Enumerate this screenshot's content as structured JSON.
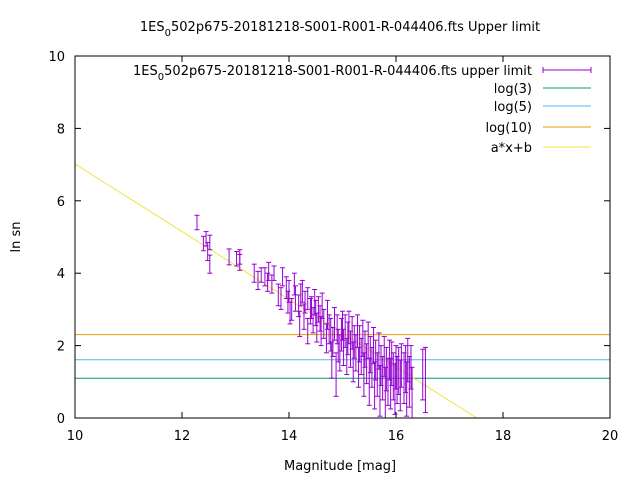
{
  "chart_data": {
    "type": "scatter",
    "title": "1ES 0502p675-20181218-S001-R001-R-044406.fts Upper limit",
    "title_parts": {
      "before": "1ES",
      "subscript": "0",
      "after": "502p675-20181218-S001-R001-R-044406.fts Upper limit"
    },
    "xlabel": "Magnitude [mag]",
    "ylabel": "ln sn",
    "xlim": [
      10,
      20
    ],
    "ylim": [
      0,
      10
    ],
    "xticks": [
      10,
      12,
      14,
      16,
      18,
      20
    ],
    "yticks": [
      0,
      2,
      4,
      6,
      8,
      10
    ],
    "grid": false,
    "legend_position": "top-right",
    "series": [
      {
        "name": "1ES 0502p675-20181218-S001-R001-R-044406.fts upper limit",
        "label_parts": {
          "before": "1ES",
          "subscript": "0",
          "after": "502p675-20181218-S001-R001-R-044406.fts upper limit"
        },
        "kind": "errorbars",
        "color": "#9400d3",
        "points": [
          [
            12.28,
            5.4,
            0.2
          ],
          [
            12.4,
            4.82,
            0.2
          ],
          [
            12.45,
            4.95,
            0.2
          ],
          [
            12.48,
            4.6,
            0.25
          ],
          [
            12.52,
            4.25,
            0.25
          ],
          [
            12.52,
            4.85,
            0.2
          ],
          [
            12.88,
            4.45,
            0.22
          ],
          [
            13.02,
            4.4,
            0.2
          ],
          [
            13.08,
            4.3,
            0.22
          ],
          [
            13.08,
            4.45,
            0.2
          ],
          [
            13.35,
            4.0,
            0.25
          ],
          [
            13.42,
            3.8,
            0.25
          ],
          [
            13.48,
            3.95,
            0.2
          ],
          [
            13.55,
            3.9,
            0.25
          ],
          [
            13.6,
            3.75,
            0.25
          ],
          [
            13.62,
            4.05,
            0.25
          ],
          [
            13.68,
            3.7,
            0.25
          ],
          [
            13.72,
            4.0,
            0.2
          ],
          [
            13.8,
            3.4,
            0.3
          ],
          [
            13.85,
            3.3,
            0.3
          ],
          [
            13.88,
            3.9,
            0.25
          ],
          [
            13.95,
            3.6,
            0.3
          ],
          [
            13.98,
            3.2,
            0.3
          ],
          [
            14.0,
            3.5,
            0.3
          ],
          [
            14.02,
            2.9,
            0.3
          ],
          [
            14.05,
            3.0,
            0.3
          ],
          [
            14.1,
            3.7,
            0.3
          ],
          [
            14.12,
            3.3,
            0.35
          ],
          [
            14.18,
            3.1,
            0.3
          ],
          [
            14.2,
            2.6,
            0.35
          ],
          [
            14.22,
            3.4,
            0.3
          ],
          [
            14.25,
            3.5,
            0.3
          ],
          [
            14.28,
            2.8,
            0.35
          ],
          [
            14.3,
            3.2,
            0.3
          ],
          [
            14.35,
            2.4,
            0.35
          ],
          [
            14.35,
            3.3,
            0.3
          ],
          [
            14.4,
            2.95,
            0.35
          ],
          [
            14.42,
            3.05,
            0.3
          ],
          [
            14.45,
            2.7,
            0.35
          ],
          [
            14.48,
            3.2,
            0.35
          ],
          [
            14.5,
            2.9,
            0.35
          ],
          [
            14.52,
            2.5,
            0.4
          ],
          [
            14.55,
            3.0,
            0.35
          ],
          [
            14.58,
            2.75,
            0.35
          ],
          [
            14.6,
            2.4,
            0.4
          ],
          [
            14.62,
            3.1,
            0.35
          ],
          [
            14.65,
            2.6,
            0.4
          ],
          [
            14.7,
            2.2,
            0.4
          ],
          [
            14.72,
            2.85,
            0.4
          ],
          [
            14.75,
            2.45,
            0.4
          ],
          [
            14.78,
            2.3,
            0.45
          ],
          [
            14.8,
            1.6,
            0.5
          ],
          [
            14.82,
            2.1,
            0.4
          ],
          [
            14.85,
            2.6,
            0.45
          ],
          [
            14.88,
            1.2,
            0.6
          ],
          [
            14.9,
            2.45,
            0.4
          ],
          [
            14.92,
            2.0,
            0.45
          ],
          [
            14.95,
            1.8,
            0.5
          ],
          [
            14.98,
            2.3,
            0.45
          ],
          [
            15.0,
            2.55,
            0.4
          ],
          [
            15.02,
            1.95,
            0.5
          ],
          [
            15.05,
            2.4,
            0.45
          ],
          [
            15.08,
            1.7,
            0.5
          ],
          [
            15.1,
            2.2,
            0.45
          ],
          [
            15.12,
            2.5,
            0.45
          ],
          [
            15.15,
            1.9,
            0.5
          ],
          [
            15.18,
            2.35,
            0.45
          ],
          [
            15.2,
            1.55,
            0.55
          ],
          [
            15.22,
            2.1,
            0.45
          ],
          [
            15.25,
            1.8,
            0.5
          ],
          [
            15.28,
            2.4,
            0.45
          ],
          [
            15.3,
            1.4,
            0.55
          ],
          [
            15.32,
            2.05,
            0.5
          ],
          [
            15.35,
            1.7,
            0.5
          ],
          [
            15.38,
            2.2,
            0.5
          ],
          [
            15.4,
            1.2,
            0.6
          ],
          [
            15.42,
            1.9,
            0.5
          ],
          [
            15.45,
            1.5,
            0.55
          ],
          [
            15.48,
            2.15,
            0.5
          ],
          [
            15.5,
            1.0,
            0.65
          ],
          [
            15.52,
            1.75,
            0.5
          ],
          [
            15.55,
            1.4,
            0.55
          ],
          [
            15.58,
            2.0,
            0.5
          ],
          [
            15.6,
            0.9,
            0.65
          ],
          [
            15.62,
            1.6,
            0.55
          ],
          [
            15.65,
            1.2,
            0.6
          ],
          [
            15.68,
            1.85,
            0.5
          ],
          [
            15.7,
            0.75,
            0.7
          ],
          [
            15.72,
            1.45,
            0.55
          ],
          [
            15.75,
            1.1,
            0.6
          ],
          [
            15.78,
            1.7,
            0.55
          ],
          [
            15.8,
            0.7,
            0.7
          ],
          [
            15.82,
            1.35,
            0.6
          ],
          [
            15.85,
            1.0,
            0.65
          ],
          [
            15.88,
            1.6,
            0.55
          ],
          [
            15.9,
            0.95,
            0.7
          ],
          [
            15.92,
            1.5,
            0.6
          ],
          [
            15.95,
            1.15,
            0.65
          ],
          [
            15.98,
            0.8,
            0.7
          ],
          [
            16.0,
            1.4,
            0.6
          ],
          [
            16.02,
            1.05,
            0.65
          ],
          [
            16.05,
            1.3,
            0.65
          ],
          [
            16.08,
            0.9,
            0.7
          ],
          [
            16.1,
            1.45,
            0.6
          ],
          [
            16.15,
            1.1,
            0.7
          ],
          [
            16.18,
            1.35,
            0.65
          ],
          [
            16.2,
            0.8,
            0.75
          ],
          [
            16.22,
            1.6,
            0.6
          ],
          [
            16.25,
            1.0,
            0.7
          ],
          [
            16.28,
            1.4,
            0.6
          ],
          [
            16.3,
            0.6,
            0.8
          ],
          [
            16.5,
            1.2,
            0.7
          ],
          [
            16.55,
            1.05,
            0.9
          ]
        ]
      },
      {
        "name": "log(3)",
        "kind": "hline",
        "y": 1.0986,
        "color": "#009e73"
      },
      {
        "name": "log(5)",
        "kind": "hline",
        "y": 1.6094,
        "color": "#56b4e9"
      },
      {
        "name": "log(10)",
        "kind": "hline",
        "y": 2.3026,
        "color": "#e69f00"
      },
      {
        "name": "a*x+b",
        "kind": "line",
        "slope": -0.935,
        "intercept": 16.37,
        "color": "#f0e442"
      }
    ]
  }
}
